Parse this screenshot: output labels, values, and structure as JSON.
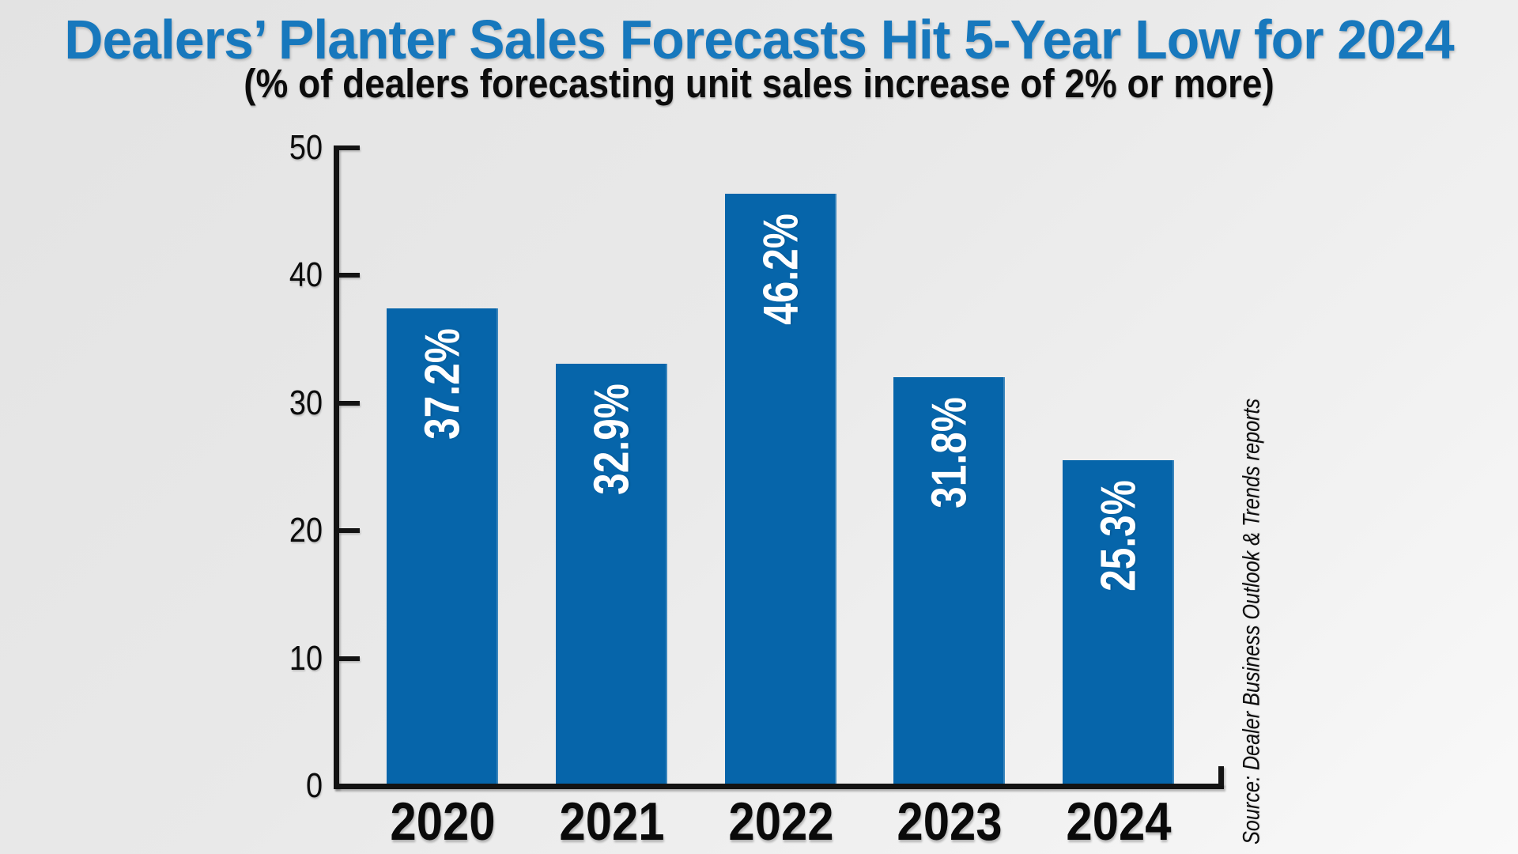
{
  "page": {
    "title": "Dealers’ Planter Sales Forecasts Hit 5-Year Low for 2024",
    "subtitle": "(% of dealers forecasting unit sales increase of 2% or more)",
    "source_note": "Source: Dealer Business Outlook & Trends reports"
  },
  "colors": {
    "title_blue": "#1778bd",
    "bar_blue": "#0665aa",
    "axis_black": "#131313",
    "value_label_white": "#ffffff",
    "text_black": "#0c0c0c"
  },
  "chart_data": {
    "type": "bar",
    "title": "Dealers’ Planter Sales Forecasts Hit 5-Year Low for 2024",
    "subtitle": "(% of dealers forecasting unit sales increase of 2% or more)",
    "categories": [
      "2020",
      "2021",
      "2022",
      "2023",
      "2024"
    ],
    "values": [
      37.2,
      32.9,
      46.2,
      31.8,
      25.3
    ],
    "value_labels": [
      "37.2%",
      "32.9%",
      "46.2%",
      "31.8%",
      "25.3%"
    ],
    "xlabel": "",
    "ylabel": "",
    "ylim": [
      0,
      50
    ],
    "yticks": [
      0,
      10,
      20,
      30,
      40,
      50
    ],
    "grid": false,
    "legend": false,
    "bar_color": "#0665aa",
    "value_label_position": "inside-top-rotated",
    "source": "Source: Dealer Business Outlook & Trends reports"
  }
}
